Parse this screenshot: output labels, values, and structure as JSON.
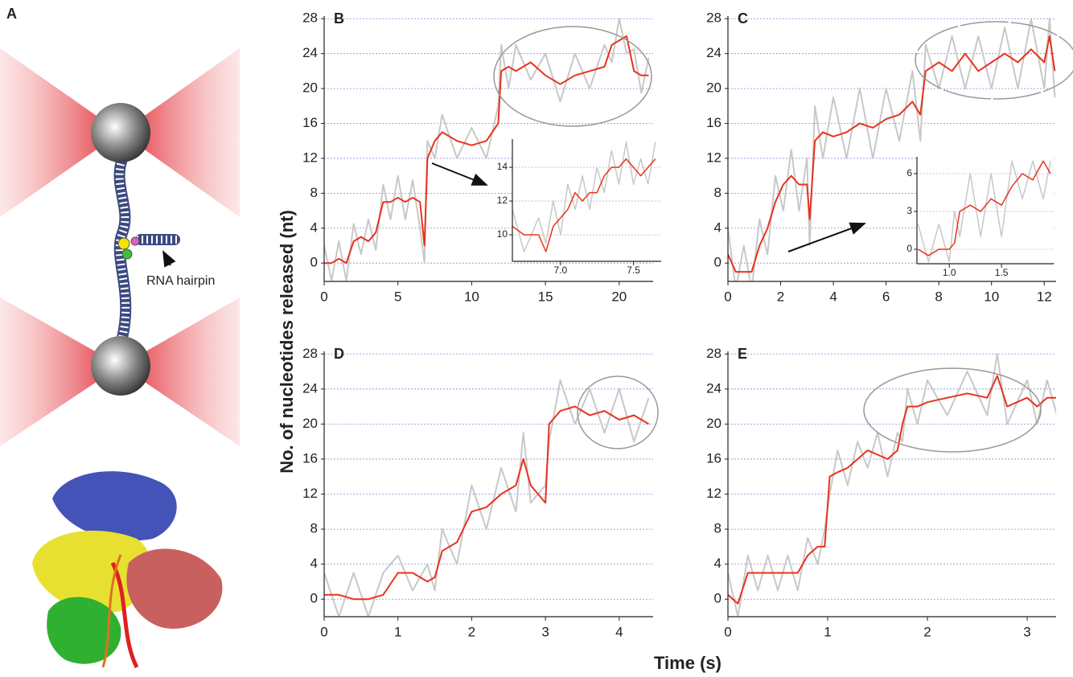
{
  "panel_a": {
    "label": "A",
    "annotation": "RNA hairpin"
  },
  "y_axis_label": "No. of nucleotides released (nt)",
  "x_axis_label": "Time (s)",
  "chart_data": [
    {
      "type": "line",
      "title": "B",
      "x": [
        0,
        0.5,
        1,
        1.5,
        2,
        2.5,
        3,
        3.5,
        4,
        4.5,
        5,
        5.5,
        6,
        6.5,
        6.8,
        7,
        7.5,
        8,
        9,
        10,
        11,
        11.8,
        12,
        12.5,
        13,
        14,
        15,
        16,
        17,
        18,
        19,
        19.5,
        20,
        20.5,
        21,
        21.5,
        22
      ],
      "series": [
        {
          "color": "#c8c8c8",
          "values": [
            2,
            -2,
            2.5,
            -2,
            4.5,
            1,
            5,
            1.5,
            9,
            5,
            10,
            5,
            9.5,
            4,
            0,
            14,
            12,
            17,
            12,
            15.5,
            12,
            18,
            25,
            20,
            25,
            21,
            24,
            18.5,
            24,
            20,
            25,
            23,
            28,
            24,
            24.5,
            19.5,
            23.5
          ]
        },
        {
          "color": "#e8321e",
          "values": [
            0,
            0,
            0.5,
            0,
            2.5,
            3,
            2.5,
            3.5,
            7,
            7,
            7.5,
            7,
            7.5,
            7,
            2,
            12,
            14,
            15,
            14,
            13.5,
            14,
            16,
            22,
            22.5,
            22,
            23,
            21.5,
            20.5,
            21.5,
            22,
            22.5,
            25,
            25.5,
            26,
            22,
            21.5,
            21.5
          ]
        }
      ],
      "xlim": [
        0,
        22.3
      ],
      "ylim": [
        -2.1,
        28.3
      ],
      "xticks": [
        0,
        5,
        10,
        15,
        20
      ],
      "yticks": [
        0,
        4,
        8,
        12,
        16,
        20,
        24,
        28
      ],
      "grid": true,
      "inset": {
        "type": "line",
        "x": [
          6.67,
          6.75,
          6.85,
          6.9,
          6.95,
          7.0,
          7.05,
          7.1,
          7.15,
          7.2,
          7.25,
          7.3,
          7.35,
          7.4,
          7.45,
          7.5,
          7.55,
          7.6,
          7.65
        ],
        "series": [
          {
            "color": "#c8c8c8",
            "values": [
              11.5,
              9,
              11,
              9.5,
              12,
              10,
              13,
              11.5,
              13.5,
              11.5,
              14,
              12.5,
              15,
              13,
              15.5,
              13,
              14.5,
              13,
              15.5
            ]
          },
          {
            "color": "#e8321e",
            "values": [
              10.5,
              10,
              10,
              9,
              10.5,
              11,
              11.5,
              12.5,
              12,
              12.5,
              12.5,
              13.5,
              14,
              14,
              14.5,
              14,
              13.5,
              14,
              14.5
            ]
          }
        ],
        "xlim": [
          6.67,
          7.69
        ],
        "ylim": [
          8.43,
          15.67
        ],
        "xticks": [
          {
            "value": 7,
            "label": "7.0"
          },
          {
            "value": 7.5,
            "label": "7.5"
          }
        ],
        "yticks": [
          10,
          12,
          14
        ],
        "grid": true
      }
    },
    {
      "type": "line",
      "title": "C",
      "x": [
        0,
        0.3,
        0.6,
        0.9,
        1.2,
        1.5,
        1.8,
        2.1,
        2.4,
        2.7,
        3,
        3.1,
        3.3,
        3.6,
        4,
        4.5,
        5,
        5.5,
        6,
        6.5,
        7,
        7.3,
        7.5,
        8,
        8.5,
        9,
        9.5,
        10,
        10.5,
        11,
        11.5,
        12,
        12.2,
        12.4
      ],
      "series": [
        {
          "color": "#c8c8c8",
          "values": [
            4,
            -3,
            2,
            -3,
            5,
            1,
            10,
            6,
            13,
            6,
            12,
            2,
            18,
            12,
            19,
            12,
            20,
            12,
            20,
            14,
            22,
            14,
            25,
            20,
            26,
            20,
            26,
            20,
            27,
            20,
            28,
            20,
            28,
            19
          ]
        },
        {
          "color": "#e8321e",
          "values": [
            1,
            -1,
            -1,
            -1,
            2,
            4,
            7,
            9,
            10,
            9,
            9,
            5,
            14,
            15,
            14.5,
            15,
            16,
            15.5,
            16.5,
            17,
            18.5,
            17,
            22,
            23,
            22,
            24,
            22,
            23,
            24,
            23,
            24.5,
            23,
            26,
            22
          ]
        }
      ],
      "xlim": [
        0,
        12.45
      ],
      "ylim": [
        -2.1,
        28.3
      ],
      "xticks": [
        0,
        2,
        4,
        6,
        8,
        10,
        12
      ],
      "yticks": [
        0,
        4,
        8,
        12,
        16,
        20,
        24,
        28
      ],
      "grid": true,
      "inset": {
        "type": "line",
        "x": [
          0.7,
          0.8,
          0.9,
          1.0,
          1.05,
          1.1,
          1.2,
          1.3,
          1.4,
          1.5,
          1.6,
          1.7,
          1.8,
          1.9,
          1.97
        ],
        "series": [
          {
            "color": "#c8c8c8",
            "values": [
              2,
              -1,
              2,
              -1,
              3,
              1,
              6,
              1,
              6,
              1,
              7,
              4,
              7,
              4,
              7
            ]
          },
          {
            "color": "#e8321e",
            "values": [
              0,
              -0.5,
              0,
              0,
              0.5,
              3,
              3.5,
              3,
              4,
              3.5,
              5,
              6,
              5.5,
              7,
              6
            ]
          }
        ],
        "xlim": [
          0.69,
          2.0
        ],
        "ylim": [
          -1.15,
          7.34
        ],
        "xticks": [
          {
            "value": 1,
            "label": "1.0"
          },
          {
            "value": 1.5,
            "label": "1.5"
          }
        ],
        "yticks": [
          0,
          3,
          6
        ],
        "grid": true
      }
    },
    {
      "type": "line",
      "title": "D",
      "x": [
        0,
        0.2,
        0.4,
        0.6,
        0.8,
        1,
        1.2,
        1.4,
        1.5,
        1.6,
        1.8,
        2,
        2.2,
        2.4,
        2.6,
        2.7,
        2.8,
        3,
        3.05,
        3.2,
        3.4,
        3.6,
        3.8,
        4,
        4.2,
        4.4
      ],
      "series": [
        {
          "color": "#c8c8c8",
          "values": [
            3,
            -2,
            3,
            -2,
            3,
            5,
            1,
            4,
            1,
            8,
            4,
            13,
            8,
            15,
            10,
            19,
            11,
            13,
            18,
            25,
            20,
            24,
            19,
            24,
            18,
            23
          ]
        },
        {
          "color": "#e8321e",
          "values": [
            0.5,
            0.5,
            0,
            0,
            0.5,
            3,
            3,
            2,
            2.5,
            5.5,
            6.5,
            10,
            10.5,
            12,
            13,
            16,
            13,
            11,
            20,
            21.5,
            22,
            21,
            21.5,
            20.5,
            21,
            20
          ]
        }
      ],
      "xlim": [
        0,
        4.46
      ],
      "ylim": [
        -2,
        28.3
      ],
      "xticks": [
        0,
        1,
        2,
        3,
        4
      ],
      "yticks": [
        0,
        4,
        8,
        12,
        16,
        20,
        24,
        28
      ],
      "grid": true
    },
    {
      "type": "line",
      "title": "E",
      "x": [
        0,
        0.1,
        0.2,
        0.3,
        0.4,
        0.5,
        0.6,
        0.7,
        0.8,
        0.9,
        0.97,
        1.02,
        1.1,
        1.2,
        1.3,
        1.4,
        1.5,
        1.6,
        1.7,
        1.75,
        1.8,
        1.9,
        2,
        2.2,
        2.4,
        2.6,
        2.7,
        2.8,
        3,
        3.1,
        3.2,
        3.3
      ],
      "series": [
        {
          "color": "#c8c8c8",
          "values": [
            3,
            -2,
            5,
            1,
            5,
            1,
            5,
            1,
            7,
            4,
            8,
            12,
            17,
            13,
            18,
            15,
            19,
            14,
            19,
            18,
            24,
            20,
            25,
            21,
            26,
            21,
            28,
            20,
            25,
            20,
            25,
            21
          ]
        },
        {
          "color": "#e8321e",
          "values": [
            0.5,
            -0.5,
            3,
            3,
            3,
            3,
            3,
            3,
            5,
            6,
            6,
            14,
            14.5,
            15,
            16,
            17,
            16.5,
            16,
            17,
            20,
            22,
            22,
            22.5,
            23,
            23.5,
            23,
            25.5,
            22,
            23,
            22,
            23,
            23
          ]
        }
      ],
      "xlim": [
        0,
        3.29
      ],
      "ylim": [
        -2,
        28.3
      ],
      "xticks": [
        0,
        1,
        2,
        3
      ],
      "yticks": [
        0,
        4,
        8,
        12,
        16,
        20,
        24,
        28
      ],
      "grid": true
    }
  ]
}
